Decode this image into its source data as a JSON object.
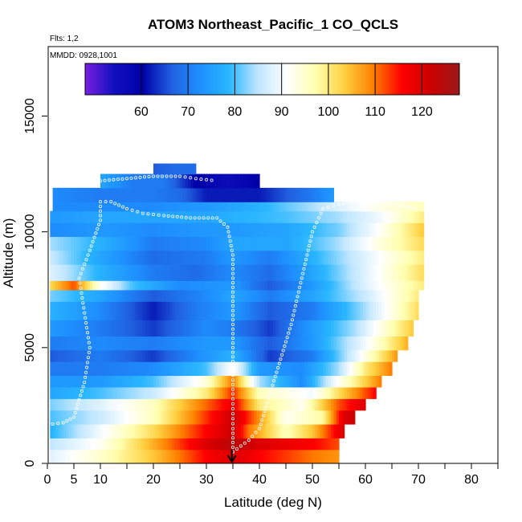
{
  "chart_data": {
    "type": "heatmap",
    "title": "ATOM3 Northeast_Pacific_1 CO_QCLS",
    "annotations": [
      "Flts: 1,2",
      "MMDD: 0928,1001"
    ],
    "xlabel": "Latitude (deg N)",
    "ylabel": "Altitude (m)",
    "xlim": [
      0,
      85
    ],
    "ylim": [
      0,
      18000
    ],
    "x_ticks": [
      0,
      5,
      10,
      20,
      30,
      40,
      50,
      60,
      70,
      80
    ],
    "y_ticks": [
      0,
      5000,
      10000,
      15000
    ],
    "y_tick_labels": [
      "0",
      "5000",
      "10000",
      "15000"
    ],
    "colorbar": {
      "range": [
        48,
        128
      ],
      "ticks": [
        60,
        70,
        80,
        90,
        100,
        110,
        120
      ],
      "colors": [
        "#7a1fe0",
        "#1010c0",
        "#0000a8",
        "#2060e0",
        "#1e90ff",
        "#29b6ff",
        "#bfe6ff",
        "#ffffff",
        "#ffffb0",
        "#ffd040",
        "#ff8000",
        "#ff0000",
        "#cc0000",
        "#9b1a1a"
      ]
    },
    "marker": {
      "type": "arrow",
      "x": 34.8
    },
    "grid": false,
    "bands": [
      {
        "y0": 0,
        "y1": 600,
        "x0": 0.5,
        "x1": 55,
        "stops": [
          [
            0.5,
            88
          ],
          [
            10,
            95
          ],
          [
            20,
            104
          ],
          [
            30,
            116
          ],
          [
            35,
            120
          ],
          [
            40,
            116
          ],
          [
            50,
            110
          ],
          [
            55,
            108
          ]
        ]
      },
      {
        "y0": 600,
        "y1": 1100,
        "x0": 0.5,
        "x1": 55,
        "stops": [
          [
            0.5,
            85
          ],
          [
            10,
            92
          ],
          [
            20,
            106
          ],
          [
            30,
            120
          ],
          [
            35,
            124
          ],
          [
            40,
            120
          ],
          [
            50,
            116
          ],
          [
            55,
            112
          ]
        ]
      },
      {
        "y0": 1100,
        "y1": 1700,
        "x0": 0.5,
        "x1": 56,
        "stops": [
          [
            0.5,
            78
          ],
          [
            10,
            90
          ],
          [
            20,
            102
          ],
          [
            30,
            116
          ],
          [
            35,
            122
          ],
          [
            38,
            110
          ],
          [
            45,
            96
          ],
          [
            50,
            104
          ],
          [
            55,
            118
          ],
          [
            56,
            120
          ]
        ]
      },
      {
        "y0": 1700,
        "y1": 2300,
        "x0": 0.5,
        "x1": 58,
        "stops": [
          [
            0.5,
            80
          ],
          [
            10,
            86
          ],
          [
            20,
            96
          ],
          [
            28,
            110
          ],
          [
            35,
            122
          ],
          [
            40,
            108
          ],
          [
            45,
            92
          ],
          [
            52,
            98
          ],
          [
            56,
            120
          ],
          [
            58,
            122
          ]
        ]
      },
      {
        "y0": 2300,
        "y1": 2800,
        "x0": 0.5,
        "x1": 60,
        "stops": [
          [
            0.5,
            82
          ],
          [
            10,
            88
          ],
          [
            20,
            96
          ],
          [
            28,
            108
          ],
          [
            35,
            118
          ],
          [
            40,
            100
          ],
          [
            48,
            92
          ],
          [
            55,
            112
          ],
          [
            60,
            120
          ]
        ]
      },
      {
        "y0": 2800,
        "y1": 3300,
        "x0": 0.5,
        "x1": 62,
        "stops": [
          [
            0.5,
            76
          ],
          [
            10,
            80
          ],
          [
            20,
            86
          ],
          [
            30,
            100
          ],
          [
            35,
            114
          ],
          [
            40,
            96
          ],
          [
            50,
            90
          ],
          [
            56,
            104
          ],
          [
            62,
            116
          ]
        ]
      },
      {
        "y0": 3300,
        "y1": 3800,
        "x0": 0.5,
        "x1": 63,
        "stops": [
          [
            0.5,
            74
          ],
          [
            10,
            74
          ],
          [
            20,
            80
          ],
          [
            30,
            94
          ],
          [
            35,
            110
          ],
          [
            40,
            84
          ],
          [
            48,
            72
          ],
          [
            55,
            92
          ],
          [
            63,
            110
          ]
        ]
      },
      {
        "y0": 3800,
        "y1": 4400,
        "x0": 0.5,
        "x1": 65,
        "stops": [
          [
            0.5,
            70
          ],
          [
            10,
            70
          ],
          [
            20,
            72
          ],
          [
            30,
            80
          ],
          [
            35,
            92
          ],
          [
            40,
            74
          ],
          [
            48,
            72
          ],
          [
            55,
            84
          ],
          [
            60,
            100
          ],
          [
            65,
            110
          ]
        ]
      },
      {
        "y0": 4400,
        "y1": 4900,
        "x0": 0.5,
        "x1": 66,
        "stops": [
          [
            0.5,
            66
          ],
          [
            10,
            70
          ],
          [
            20,
            64
          ],
          [
            28,
            72
          ],
          [
            35,
            78
          ],
          [
            42,
            64
          ],
          [
            50,
            70
          ],
          [
            58,
            88
          ],
          [
            66,
            108
          ]
        ]
      },
      {
        "y0": 4900,
        "y1": 5500,
        "x0": 0.5,
        "x1": 68,
        "stops": [
          [
            0.5,
            70
          ],
          [
            10,
            72
          ],
          [
            20,
            70
          ],
          [
            30,
            74
          ],
          [
            35,
            74
          ],
          [
            42,
            66
          ],
          [
            50,
            74
          ],
          [
            60,
            90
          ],
          [
            68,
            106
          ]
        ]
      },
      {
        "y0": 5500,
        "y1": 6200,
        "x0": 0.5,
        "x1": 69,
        "stops": [
          [
            0.5,
            74
          ],
          [
            10,
            70
          ],
          [
            20,
            64
          ],
          [
            30,
            72
          ],
          [
            35,
            70
          ],
          [
            42,
            64
          ],
          [
            48,
            72
          ],
          [
            58,
            84
          ],
          [
            69,
            104
          ]
        ]
      },
      {
        "y0": 6200,
        "y1": 7000,
        "x0": 0.5,
        "x1": 70,
        "stops": [
          [
            0.5,
            78
          ],
          [
            10,
            72
          ],
          [
            20,
            62
          ],
          [
            28,
            70
          ],
          [
            35,
            74
          ],
          [
            42,
            66
          ],
          [
            50,
            70
          ],
          [
            60,
            84
          ],
          [
            70,
            102
          ]
        ]
      },
      {
        "y0": 7000,
        "y1": 7500,
        "x0": 0.5,
        "x1": 70,
        "stops": [
          [
            0.5,
            82
          ],
          [
            10,
            76
          ],
          [
            20,
            66
          ],
          [
            30,
            72
          ],
          [
            35,
            76
          ],
          [
            42,
            70
          ],
          [
            50,
            76
          ],
          [
            60,
            86
          ],
          [
            70,
            100
          ]
        ]
      },
      {
        "y0": 7500,
        "y1": 7900,
        "x0": 0.5,
        "x1": 71,
        "stops": [
          [
            0.5,
            102
          ],
          [
            5,
            112
          ],
          [
            10,
            92
          ],
          [
            16,
            80
          ],
          [
            25,
            72
          ],
          [
            35,
            74
          ],
          [
            42,
            66
          ],
          [
            50,
            74
          ],
          [
            60,
            88
          ],
          [
            71,
            100
          ]
        ]
      },
      {
        "y0": 7900,
        "y1": 8600,
        "x0": 0.5,
        "x1": 71,
        "stops": [
          [
            0.5,
            88
          ],
          [
            10,
            78
          ],
          [
            20,
            70
          ],
          [
            28,
            68
          ],
          [
            35,
            72
          ],
          [
            42,
            68
          ],
          [
            50,
            76
          ],
          [
            60,
            88
          ],
          [
            71,
            102
          ]
        ]
      },
      {
        "y0": 8600,
        "y1": 9200,
        "x0": 0.5,
        "x1": 71,
        "stops": [
          [
            0.5,
            86
          ],
          [
            10,
            76
          ],
          [
            20,
            68
          ],
          [
            30,
            70
          ],
          [
            35,
            74
          ],
          [
            42,
            70
          ],
          [
            50,
            78
          ],
          [
            60,
            88
          ],
          [
            71,
            100
          ]
        ]
      },
      {
        "y0": 9200,
        "y1": 9800,
        "x0": 0.5,
        "x1": 71,
        "stops": [
          [
            0.5,
            84
          ],
          [
            10,
            78
          ],
          [
            20,
            70
          ],
          [
            30,
            72
          ],
          [
            35,
            76
          ],
          [
            45,
            76
          ],
          [
            55,
            84
          ],
          [
            63,
            94
          ],
          [
            71,
            102
          ]
        ]
      },
      {
        "y0": 9800,
        "y1": 10400,
        "x0": 0.5,
        "x1": 71,
        "stops": [
          [
            0.5,
            72
          ],
          [
            10,
            74
          ],
          [
            20,
            72
          ],
          [
            30,
            74
          ],
          [
            35,
            74
          ],
          [
            45,
            76
          ],
          [
            55,
            82
          ],
          [
            63,
            92
          ],
          [
            71,
            104
          ]
        ]
      },
      {
        "y0": 10400,
        "y1": 10900,
        "x0": 0.5,
        "x1": 71,
        "stops": [
          [
            0.5,
            74
          ],
          [
            10,
            76
          ],
          [
            20,
            76
          ],
          [
            30,
            76
          ],
          [
            35,
            78
          ],
          [
            45,
            80
          ],
          [
            55,
            84
          ],
          [
            63,
            90
          ],
          [
            71,
            100
          ]
        ]
      },
      {
        "y0": 10900,
        "y1": 11300,
        "x0": 1,
        "x1": 71,
        "stops": [
          [
            1,
            72
          ],
          [
            10,
            72
          ],
          [
            20,
            72
          ],
          [
            30,
            74
          ],
          [
            40,
            78
          ],
          [
            50,
            84
          ],
          [
            58,
            90
          ],
          [
            65,
            94
          ],
          [
            71,
            96
          ]
        ]
      },
      {
        "y0": 11300,
        "y1": 11900,
        "x0": 1,
        "x1": 54,
        "stops": [
          [
            1,
            72
          ],
          [
            10,
            70
          ],
          [
            20,
            70
          ],
          [
            25,
            68
          ],
          [
            30,
            62
          ],
          [
            40,
            62
          ],
          [
            50,
            70
          ],
          [
            54,
            74
          ]
        ]
      },
      {
        "y0": 11900,
        "y1": 12500,
        "x0": 10,
        "x1": 40,
        "stops": [
          [
            10,
            76
          ],
          [
            16,
            70
          ],
          [
            22,
            70
          ],
          [
            28,
            60
          ],
          [
            34,
            56
          ],
          [
            40,
            60
          ]
        ]
      },
      {
        "y0": 12500,
        "y1": 12950,
        "x0": 20,
        "x1": 28,
        "stops": [
          [
            20,
            66
          ],
          [
            24,
            68
          ],
          [
            28,
            68
          ]
        ]
      }
    ],
    "flight_track": [
      [
        1,
        1700
      ],
      [
        3,
        1750
      ],
      [
        5,
        2000
      ],
      [
        7,
        3500
      ],
      [
        8,
        5000
      ],
      [
        7,
        6500
      ],
      [
        6,
        8000
      ],
      [
        8,
        9200
      ],
      [
        10,
        10500
      ],
      [
        10,
        11300
      ],
      [
        12,
        11300
      ],
      [
        15,
        11000
      ],
      [
        18,
        10800
      ],
      [
        22,
        10700
      ],
      [
        27,
        10600
      ],
      [
        32,
        10600
      ],
      [
        34,
        10200
      ],
      [
        35,
        9000
      ],
      [
        35,
        7000
      ],
      [
        35,
        5000
      ],
      [
        35,
        3000
      ],
      [
        35,
        1500
      ],
      [
        35,
        500
      ],
      [
        38,
        1000
      ],
      [
        40,
        1500
      ],
      [
        42,
        3000
      ],
      [
        44,
        4500
      ],
      [
        46,
        6000
      ],
      [
        48,
        8000
      ],
      [
        50,
        10000
      ],
      [
        52,
        11000
      ],
      [
        55,
        11200
      ],
      [
        60,
        11300
      ],
      [
        65,
        11200
      ],
      [
        70,
        11000
      ]
    ],
    "flight_track_upper": [
      [
        10,
        12200
      ],
      [
        15,
        12300
      ],
      [
        20,
        12400
      ],
      [
        25,
        12400
      ],
      [
        28,
        12300
      ],
      [
        32,
        12200
      ]
    ]
  }
}
